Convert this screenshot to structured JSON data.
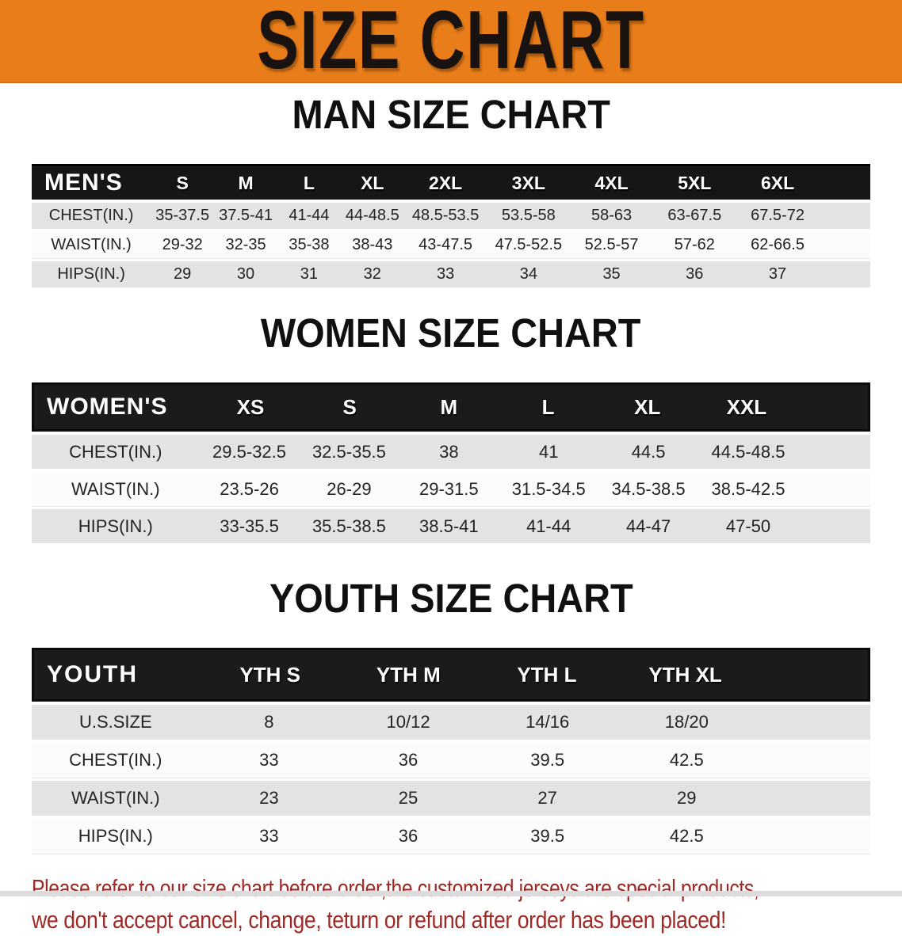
{
  "banner": {
    "title": "SIZE CHART",
    "bg_color": "#e87d1a",
    "text_color": "#181210"
  },
  "colors": {
    "table_header_bg": "#161616",
    "table_header_text": "#ffffff",
    "row_gray": "#e3e3e3",
    "row_white": "#fbfbfb",
    "disclaimer_red": "#9e2a26"
  },
  "chart_data": [
    {
      "type": "table",
      "title": "MAN SIZE CHART",
      "group_label": "MEN'S",
      "sizes": [
        "S",
        "M",
        "L",
        "XL",
        "2XL",
        "3XL",
        "4XL",
        "5XL",
        "6XL"
      ],
      "rows": [
        {
          "label": "CHEST(IN.)",
          "values": [
            "35-37.5",
            "37.5-41",
            "41-44",
            "44-48.5",
            "48.5-53.5",
            "53.5-58",
            "58-63",
            "63-67.5",
            "67.5-72"
          ]
        },
        {
          "label": "WAIST(IN.)",
          "values": [
            "29-32",
            "32-35",
            "35-38",
            "38-43",
            "43-47.5",
            "47.5-52.5",
            "52.5-57",
            "57-62",
            "62-66.5"
          ]
        },
        {
          "label": "HIPS(IN.)",
          "values": [
            "29",
            "30",
            "31",
            "32",
            "33",
            "34",
            "35",
            "36",
            "37"
          ]
        }
      ]
    },
    {
      "type": "table",
      "title": "WOMEN SIZE CHART",
      "group_label": "WOMEN'S",
      "sizes": [
        "XS",
        "S",
        "M",
        "L",
        "XL",
        "XXL"
      ],
      "rows": [
        {
          "label": "CHEST(IN.)",
          "values": [
            "29.5-32.5",
            "32.5-35.5",
            "38",
            "41",
            "44.5",
            "44.5-48.5"
          ]
        },
        {
          "label": "WAIST(IN.)",
          "values": [
            "23.5-26",
            "26-29",
            "29-31.5",
            "31.5-34.5",
            "34.5-38.5",
            "38.5-42.5"
          ]
        },
        {
          "label": "HIPS(IN.)",
          "values": [
            "33-35.5",
            "35.5-38.5",
            "38.5-41",
            "41-44",
            "44-47",
            "47-50"
          ]
        }
      ]
    },
    {
      "type": "table",
      "title": "YOUTH SIZE CHART",
      "group_label": "YOUTH",
      "sizes": [
        "YTH S",
        "YTH M",
        "YTH L",
        "YTH XL"
      ],
      "rows": [
        {
          "label": "U.S.SIZE",
          "values": [
            "8",
            "10/12",
            "14/16",
            "18/20"
          ]
        },
        {
          "label": "CHEST(IN.)",
          "values": [
            "33",
            "36",
            "39.5",
            "42.5"
          ]
        },
        {
          "label": "WAIST(IN.)",
          "values": [
            "23",
            "25",
            "27",
            "29"
          ]
        },
        {
          "label": "HIPS(IN.)",
          "values": [
            "33",
            "36",
            "39.5",
            "42.5"
          ]
        }
      ]
    }
  ],
  "disclaimer": {
    "line1": "Please refer to our size chart before order,the customized jerseys are special products,",
    "line2": "we don't accept cancel, change, teturn or refund after order has been placed!"
  }
}
